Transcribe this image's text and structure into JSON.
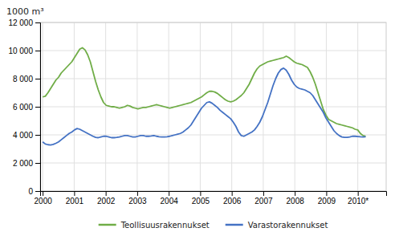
{
  "chart_data": {
    "type": "line",
    "title": "1000 m³",
    "x": [
      2000,
      2000.084,
      2000.168,
      2000.252,
      2000.3361,
      2000.4201,
      2000.5041,
      2000.5881,
      2000.6721,
      2000.7561,
      2000.8402,
      2000.9242,
      2001.0082,
      2001.0922,
      2001.1762,
      2001.2602,
      2001.3443,
      2001.4283,
      2001.5123,
      2001.5963,
      2001.6803,
      2001.7643,
      2001.8484,
      2001.9324,
      2002.0164,
      2002.1004,
      2002.1844,
      2002.2684,
      2002.3525,
      2002.4365,
      2002.5205,
      2002.6045,
      2002.6885,
      2002.7725,
      2002.8566,
      2002.9406,
      2003.0246,
      2003.1086,
      2003.1926,
      2003.2766,
      2003.3607,
      2003.4447,
      2003.5287,
      2003.6127,
      2003.6967,
      2003.7807,
      2003.8648,
      2003.9488,
      2004.0328,
      2004.1168,
      2004.2008,
      2004.2848,
      2004.3689,
      2004.4529,
      2004.5369,
      2004.6209,
      2004.7049,
      2004.7889,
      2004.873,
      2004.957,
      2005.041,
      2005.125,
      2005.209,
      2005.293,
      2005.377,
      2005.4611,
      2005.5451,
      2005.6291,
      2005.7131,
      2005.7971,
      2005.8811,
      2005.9652,
      2006.0492,
      2006.1332,
      2006.2172,
      2006.3012,
      2006.3852,
      2006.4693,
      2006.5533,
      2006.6373,
      2006.7213,
      2006.8053,
      2006.8893,
      2006.9734,
      2007.0574,
      2007.1414,
      2007.2254,
      2007.3094,
      2007.3934,
      2007.4775,
      2007.5615,
      2007.6455,
      2007.7295,
      2007.8135,
      2007.8975,
      2007.9816,
      2008.0656,
      2008.1496,
      2008.2336,
      2008.3176,
      2008.4016,
      2008.4857,
      2008.5697,
      2008.6537,
      2008.7377,
      2008.8217,
      2008.9057,
      2008.9898,
      2009.0738,
      2009.1578,
      2009.2418,
      2009.3258,
      2009.4098,
      2009.4939,
      2009.5779,
      2009.6619,
      2009.7459,
      2009.8299,
      2009.9139,
      2009.998,
      2010.082,
      2010.166,
      2010.25
    ],
    "series": [
      {
        "name": "Teollisuusrakennukset",
        "color": "#70ad47",
        "values": [
          6700,
          6750,
          7000,
          7300,
          7600,
          7900,
          8100,
          8400,
          8600,
          8800,
          9000,
          9200,
          9500,
          9800,
          10100,
          10200,
          10050,
          9700,
          9200,
          8500,
          7800,
          7200,
          6700,
          6300,
          6100,
          6050,
          6000,
          6000,
          5950,
          5900,
          5950,
          6000,
          6100,
          6050,
          5950,
          5900,
          5850,
          5900,
          5950,
          5950,
          6000,
          6050,
          6100,
          6150,
          6100,
          6050,
          6000,
          5950,
          5900,
          5950,
          6000,
          6050,
          6100,
          6150,
          6200,
          6250,
          6300,
          6400,
          6500,
          6600,
          6700,
          6850,
          7000,
          7100,
          7100,
          7050,
          6950,
          6800,
          6650,
          6500,
          6400,
          6350,
          6400,
          6500,
          6650,
          6800,
          7000,
          7300,
          7600,
          8000,
          8400,
          8700,
          8900,
          9000,
          9100,
          9200,
          9250,
          9300,
          9350,
          9400,
          9450,
          9500,
          9600,
          9500,
          9350,
          9200,
          9100,
          9050,
          9000,
          8900,
          8800,
          8500,
          8100,
          7600,
          7000,
          6400,
          5800,
          5400,
          5100,
          5000,
          4900,
          4800,
          4750,
          4700,
          4650,
          4600,
          4550,
          4500,
          4400,
          4350,
          4100,
          3950,
          3900
        ]
      },
      {
        "name": "Varastorakennukset",
        "color": "#4472c4",
        "values": [
          3500,
          3350,
          3300,
          3280,
          3320,
          3400,
          3500,
          3650,
          3800,
          3950,
          4100,
          4200,
          4350,
          4450,
          4400,
          4300,
          4200,
          4100,
          4000,
          3900,
          3820,
          3800,
          3850,
          3900,
          3900,
          3850,
          3800,
          3800,
          3820,
          3850,
          3900,
          3950,
          3950,
          3900,
          3850,
          3850,
          3900,
          3950,
          3950,
          3900,
          3900,
          3920,
          3950,
          3900,
          3870,
          3850,
          3850,
          3870,
          3900,
          3950,
          4000,
          4050,
          4100,
          4200,
          4350,
          4500,
          4700,
          5000,
          5300,
          5600,
          5900,
          6100,
          6300,
          6350,
          6250,
          6100,
          5950,
          5750,
          5600,
          5450,
          5300,
          5150,
          4900,
          4600,
          4200,
          3950,
          3900,
          4000,
          4100,
          4200,
          4350,
          4600,
          4900,
          5300,
          5800,
          6300,
          6900,
          7500,
          8000,
          8400,
          8650,
          8750,
          8600,
          8300,
          7900,
          7600,
          7400,
          7300,
          7250,
          7200,
          7100,
          7000,
          6800,
          6500,
          6200,
          5900,
          5600,
          5200,
          4900,
          4600,
          4300,
          4100,
          3950,
          3850,
          3820,
          3820,
          3850,
          3900,
          3900,
          3880,
          3860,
          3850,
          3870
        ]
      }
    ],
    "xlim": [
      1999.92,
      2010.9
    ],
    "xticks": [
      2000,
      2001,
      2002,
      2003,
      2004,
      2005,
      2006,
      2007,
      2008,
      2009,
      {
        "value": 2010,
        "label": "2010*"
      }
    ],
    "ylim": [
      0,
      12000
    ],
    "yticks": [
      0,
      {
        "value": 2000,
        "label": "2 000"
      },
      {
        "value": 4000,
        "label": "4 000"
      },
      {
        "value": 6000,
        "label": "6 000"
      },
      {
        "value": 8000,
        "label": "8 000"
      },
      {
        "value": 10000,
        "label": "10 000"
      },
      {
        "value": 12000,
        "label": "12 000"
      }
    ],
    "grid": true,
    "legend": "bottom"
  }
}
